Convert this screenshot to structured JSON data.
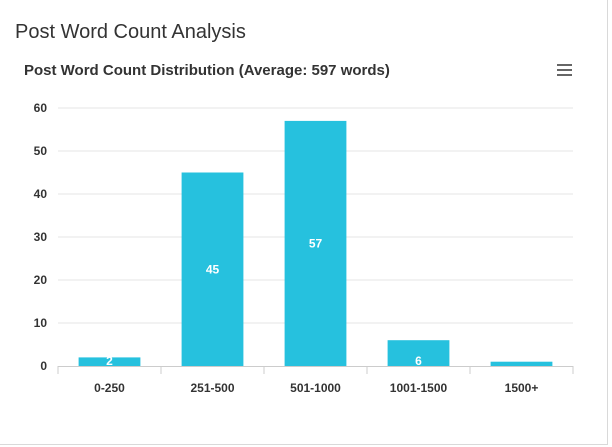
{
  "page": {
    "title": "Post Word Count Analysis"
  },
  "chart_data": {
    "type": "bar",
    "title": "Post Word Count Distribution (Average: 597 words)",
    "xlabel": "",
    "ylabel": "",
    "categories": [
      "0-250",
      "251-500",
      "501-1000",
      "1001-1500",
      "1500+"
    ],
    "values": [
      2,
      45,
      57,
      6,
      1
    ],
    "data_labels": [
      "2",
      "45",
      "57",
      "6",
      ""
    ],
    "ylim": [
      0,
      60
    ],
    "yticks": [
      "0",
      "10",
      "20",
      "30",
      "40",
      "50",
      "60"
    ],
    "grid": true,
    "color": "#26c1de"
  },
  "menu": {
    "icon": "hamburger-menu-icon"
  }
}
